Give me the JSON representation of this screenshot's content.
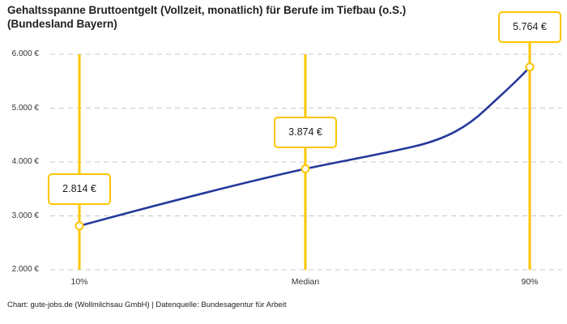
{
  "header": {
    "title_line1": "Gehaltsspanne Bruttoentgelt (Vollzeit, monatlich) für Berufe im Tiefbau (o.S.)",
    "title_line2": "(Bundesland Bayern)"
  },
  "chart_data": {
    "type": "line",
    "title": "Gehaltsspanne Bruttoentgelt (Vollzeit, monatlich) für Berufe im Tiefbau (o.S.) (Bundesland Bayern)",
    "categories": [
      "10%",
      "Median",
      "90%"
    ],
    "values": [
      2814,
      3874,
      5764
    ],
    "point_labels": [
      "2.814 €",
      "3.874 €",
      "5.764 €"
    ],
    "xlabel": "",
    "ylabel": "",
    "ylim": [
      2000,
      6000
    ],
    "ytick_values": [
      6000,
      5000,
      4000,
      3000,
      2000
    ],
    "ytick_labels": [
      "6.000 €",
      "5.000 €",
      "4.000 €",
      "3.000 €",
      "2.000 €"
    ],
    "grid": "horizontal-dashed",
    "legend": "none"
  },
  "footer": {
    "credit": "Chart: gute-jobs.de (Wollmilchsau GmbH) | Datenquelle: Bundesagentur für Arbeit"
  },
  "colors": {
    "accent_yellow": "#fdc500",
    "line_blue": "#24399b",
    "grid_gray": "#c8c8c8",
    "text_dark": "#1f1f1f",
    "text_secondary": "#333333",
    "background": "#ffffff"
  }
}
